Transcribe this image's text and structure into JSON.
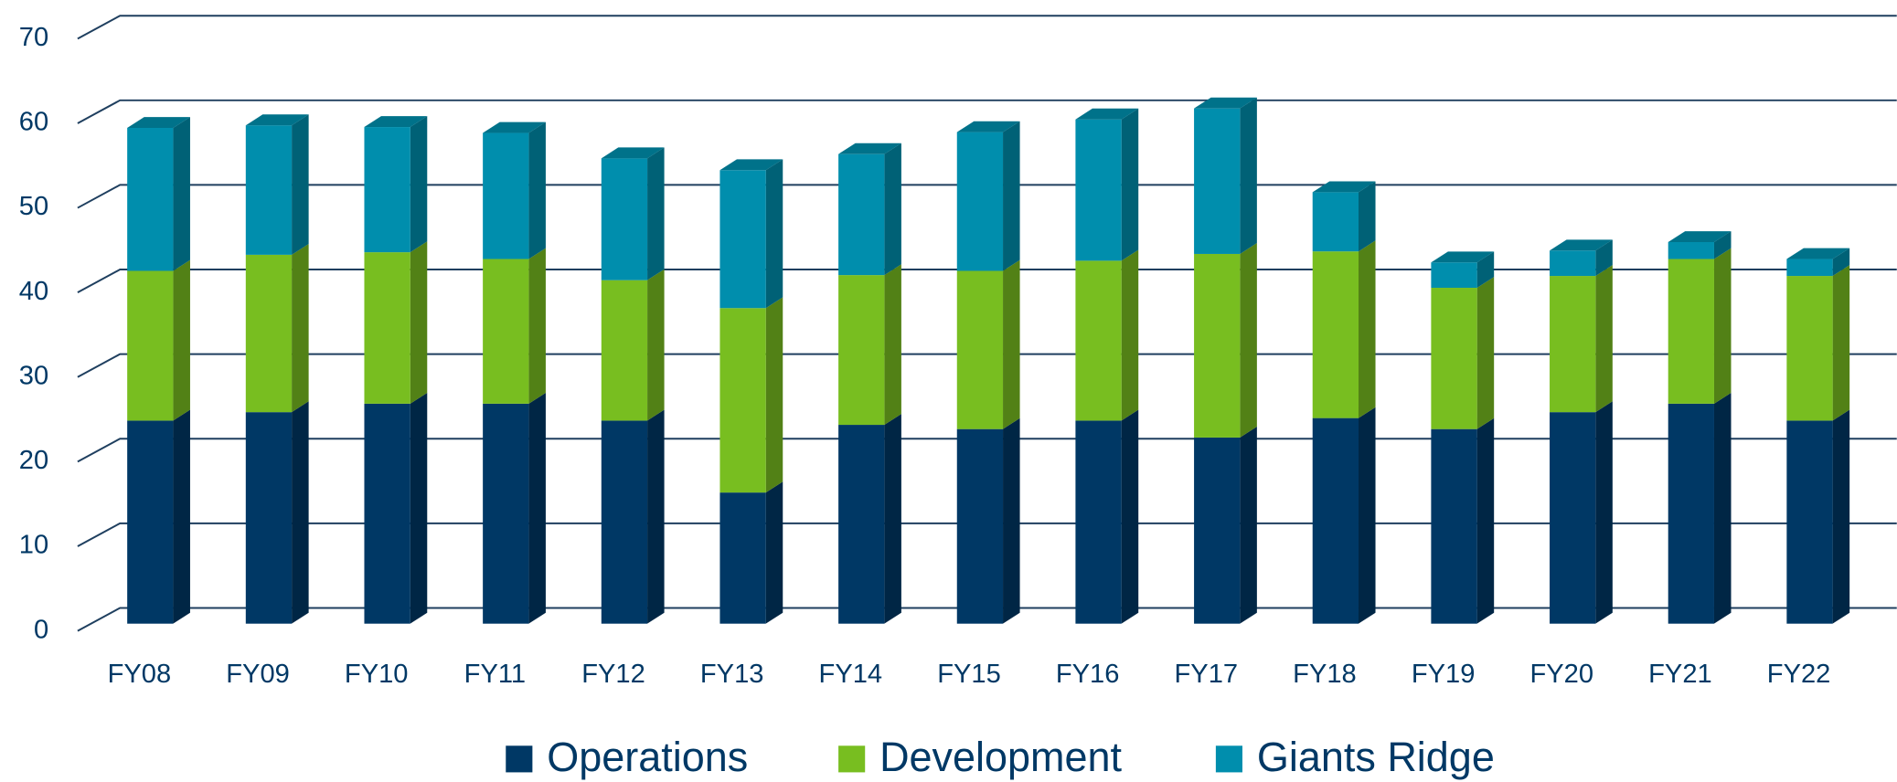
{
  "chart_data": {
    "type": "bar",
    "stacked": true,
    "categories": [
      "FY08",
      "FY09",
      "FY10",
      "FY11",
      "FY12",
      "FY13",
      "FY14",
      "FY15",
      "FY16",
      "FY17",
      "FY18",
      "FY19",
      "FY20",
      "FY21",
      "FY22"
    ],
    "series": [
      {
        "name": "Operations",
        "color": "#003865",
        "values": [
          24,
          25,
          26,
          26,
          24,
          15.5,
          23.5,
          23,
          24,
          22,
          24.3,
          23,
          25,
          26,
          24
        ]
      },
      {
        "name": "Development",
        "color": "#78be20",
        "values": [
          17.7,
          18.6,
          17.9,
          17.1,
          16.6,
          21.8,
          17.7,
          18.7,
          18.9,
          21.7,
          19.7,
          16.7,
          16.1,
          17.1,
          17.1
        ]
      },
      {
        "name": "Giants Ridge",
        "color": "#008ead",
        "values": [
          16.9,
          15.3,
          14.8,
          14.9,
          14.4,
          16.3,
          14.3,
          16.4,
          16.7,
          17.2,
          7,
          3,
          3,
          2,
          2
        ]
      }
    ],
    "ylim": [
      0,
      70
    ],
    "yticks": [
      0,
      10,
      20,
      30,
      40,
      50,
      60,
      70
    ],
    "grid": true,
    "legend": "bottom"
  }
}
